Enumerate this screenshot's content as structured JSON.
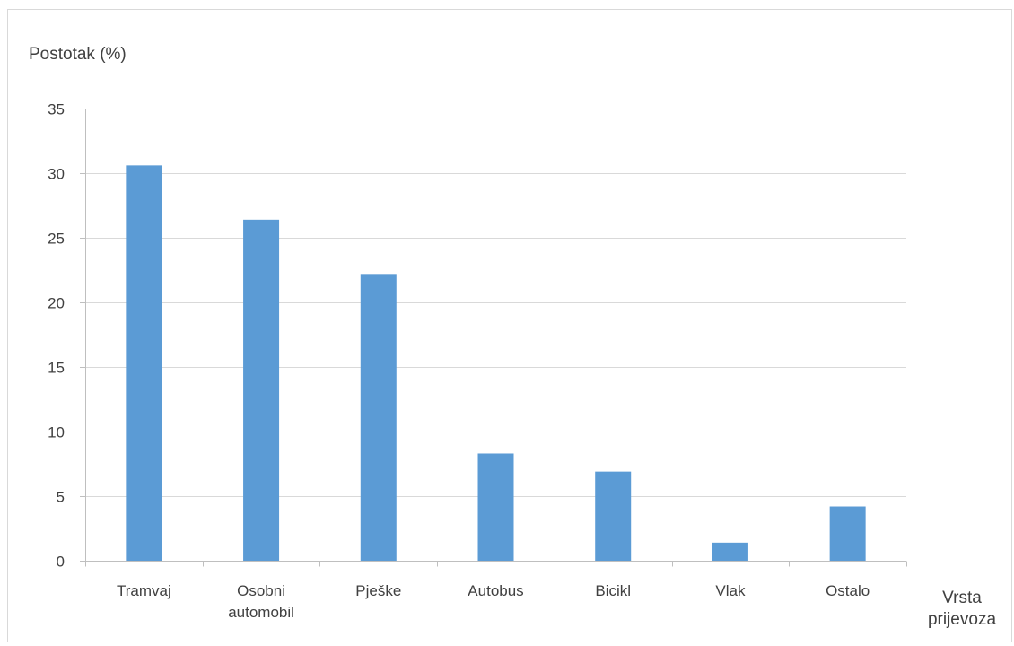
{
  "chart_data": {
    "type": "bar",
    "ylabel": "Postotak (%)",
    "xlabel": [
      "Vrsta",
      "prijevoza"
    ],
    "categories": [
      [
        "Tramvaj"
      ],
      [
        "Osobni",
        "automobil"
      ],
      [
        "Pješke"
      ],
      [
        "Autobus"
      ],
      [
        "Bicikl"
      ],
      [
        "Vlak"
      ],
      [
        "Ostalo"
      ]
    ],
    "values": [
      30.6,
      26.4,
      22.2,
      8.3,
      6.9,
      1.4,
      4.2
    ],
    "ylim": [
      0,
      35
    ],
    "yticks": [
      0,
      5,
      10,
      15,
      20,
      25,
      30,
      35
    ],
    "grid": true,
    "bar_color": "#5b9bd5",
    "grid_color": "#d9d9d9",
    "axis_color": "#bfbfbf"
  }
}
